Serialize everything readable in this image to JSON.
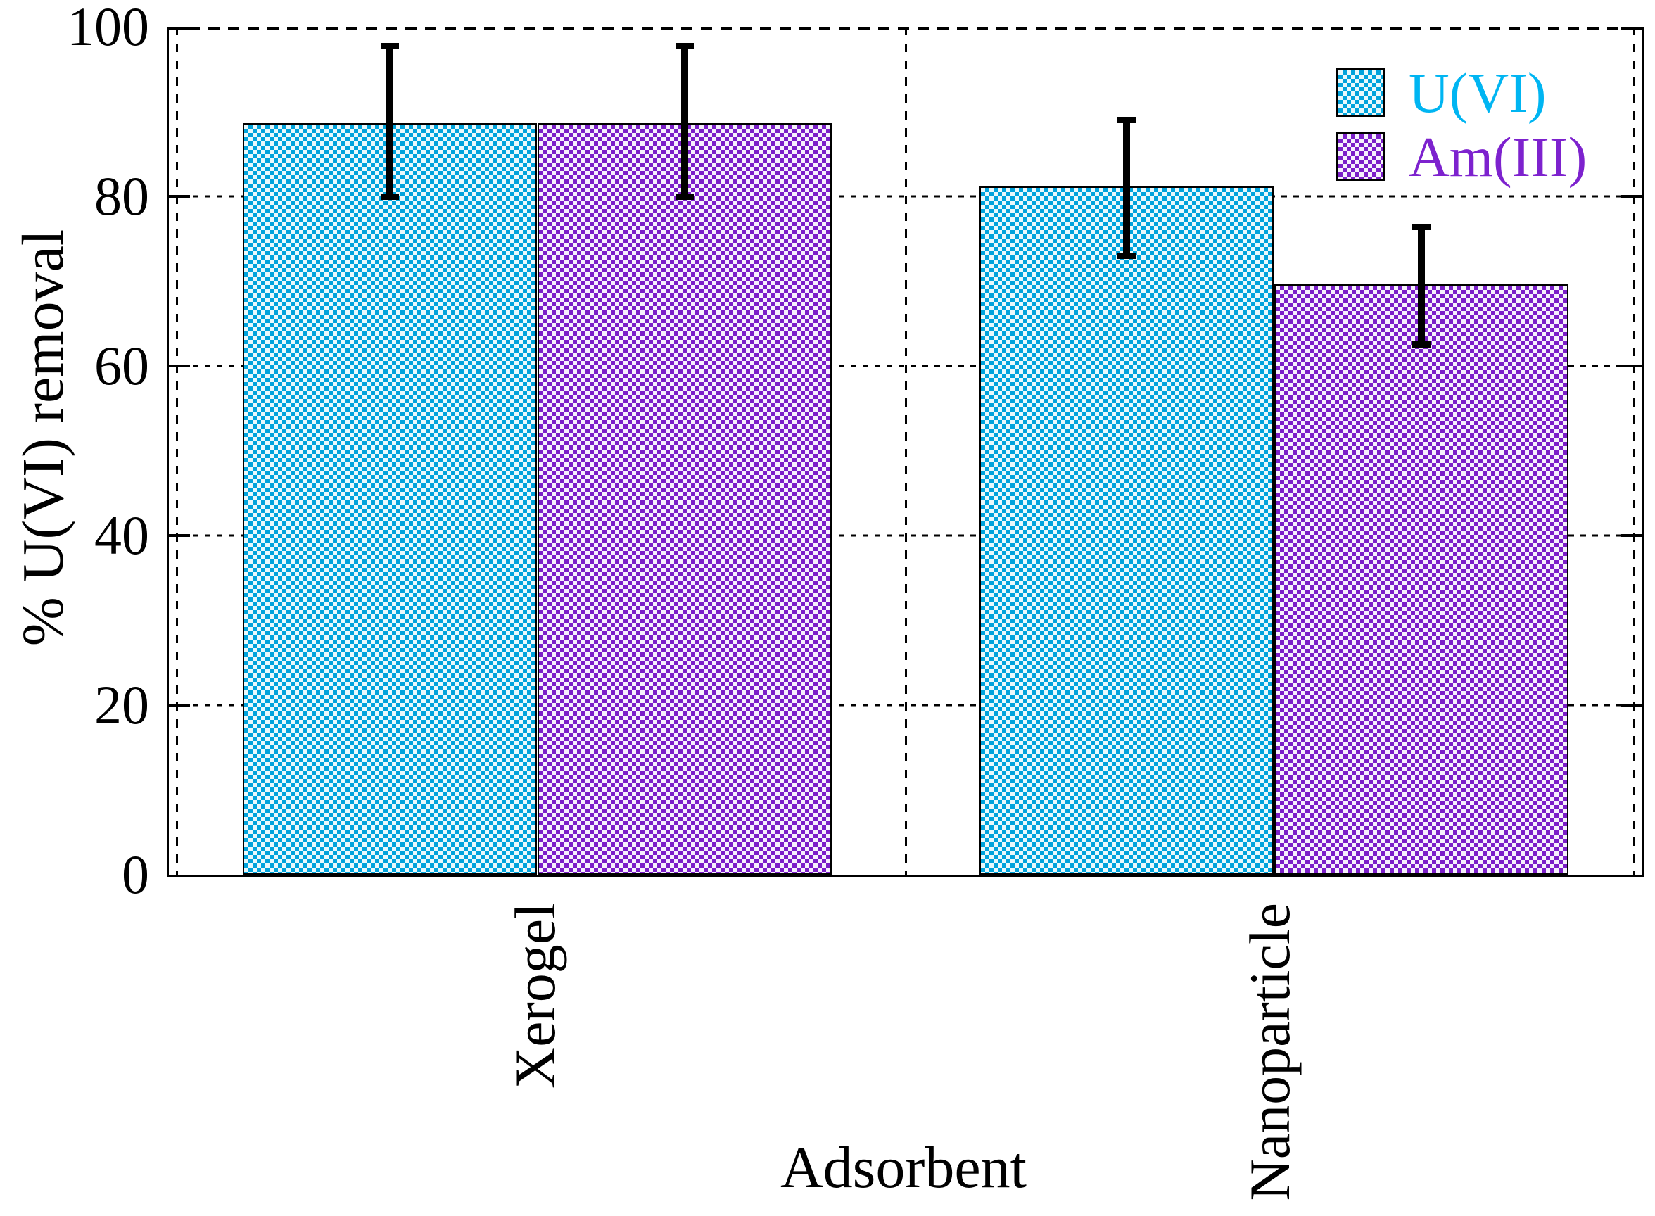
{
  "chart_data": {
    "type": "bar",
    "title": "",
    "xlabel": "Adsorbent",
    "ylabel": "% U(VI) removal",
    "categories": [
      "Xerogel",
      "Nanoparticle"
    ],
    "yticks": [
      0,
      20,
      40,
      60,
      80,
      100
    ],
    "ylim": [
      0,
      100
    ],
    "grid": true,
    "legend_position": "top-right",
    "bar_pattern": "checkerboard",
    "axis_color": "#000000",
    "error_bar_color": "#000000",
    "series": [
      {
        "name": "U(VI)",
        "color": "#00A3DC",
        "pattern_light": "#E9F9FC",
        "text_color": "#00B5F2",
        "values": [
          88.6,
          81.2
        ],
        "error_low": [
          80.0,
          73.0
        ],
        "error_high": [
          97.7,
          89.0
        ]
      },
      {
        "name": "Am(III)",
        "color": "#7B1FC8",
        "pattern_light": "#F6F1FC",
        "text_color": "#7D22CE",
        "values": [
          88.6,
          69.6
        ],
        "error_low": [
          80.0,
          62.5
        ],
        "error_high": [
          97.7,
          76.4
        ]
      }
    ]
  }
}
